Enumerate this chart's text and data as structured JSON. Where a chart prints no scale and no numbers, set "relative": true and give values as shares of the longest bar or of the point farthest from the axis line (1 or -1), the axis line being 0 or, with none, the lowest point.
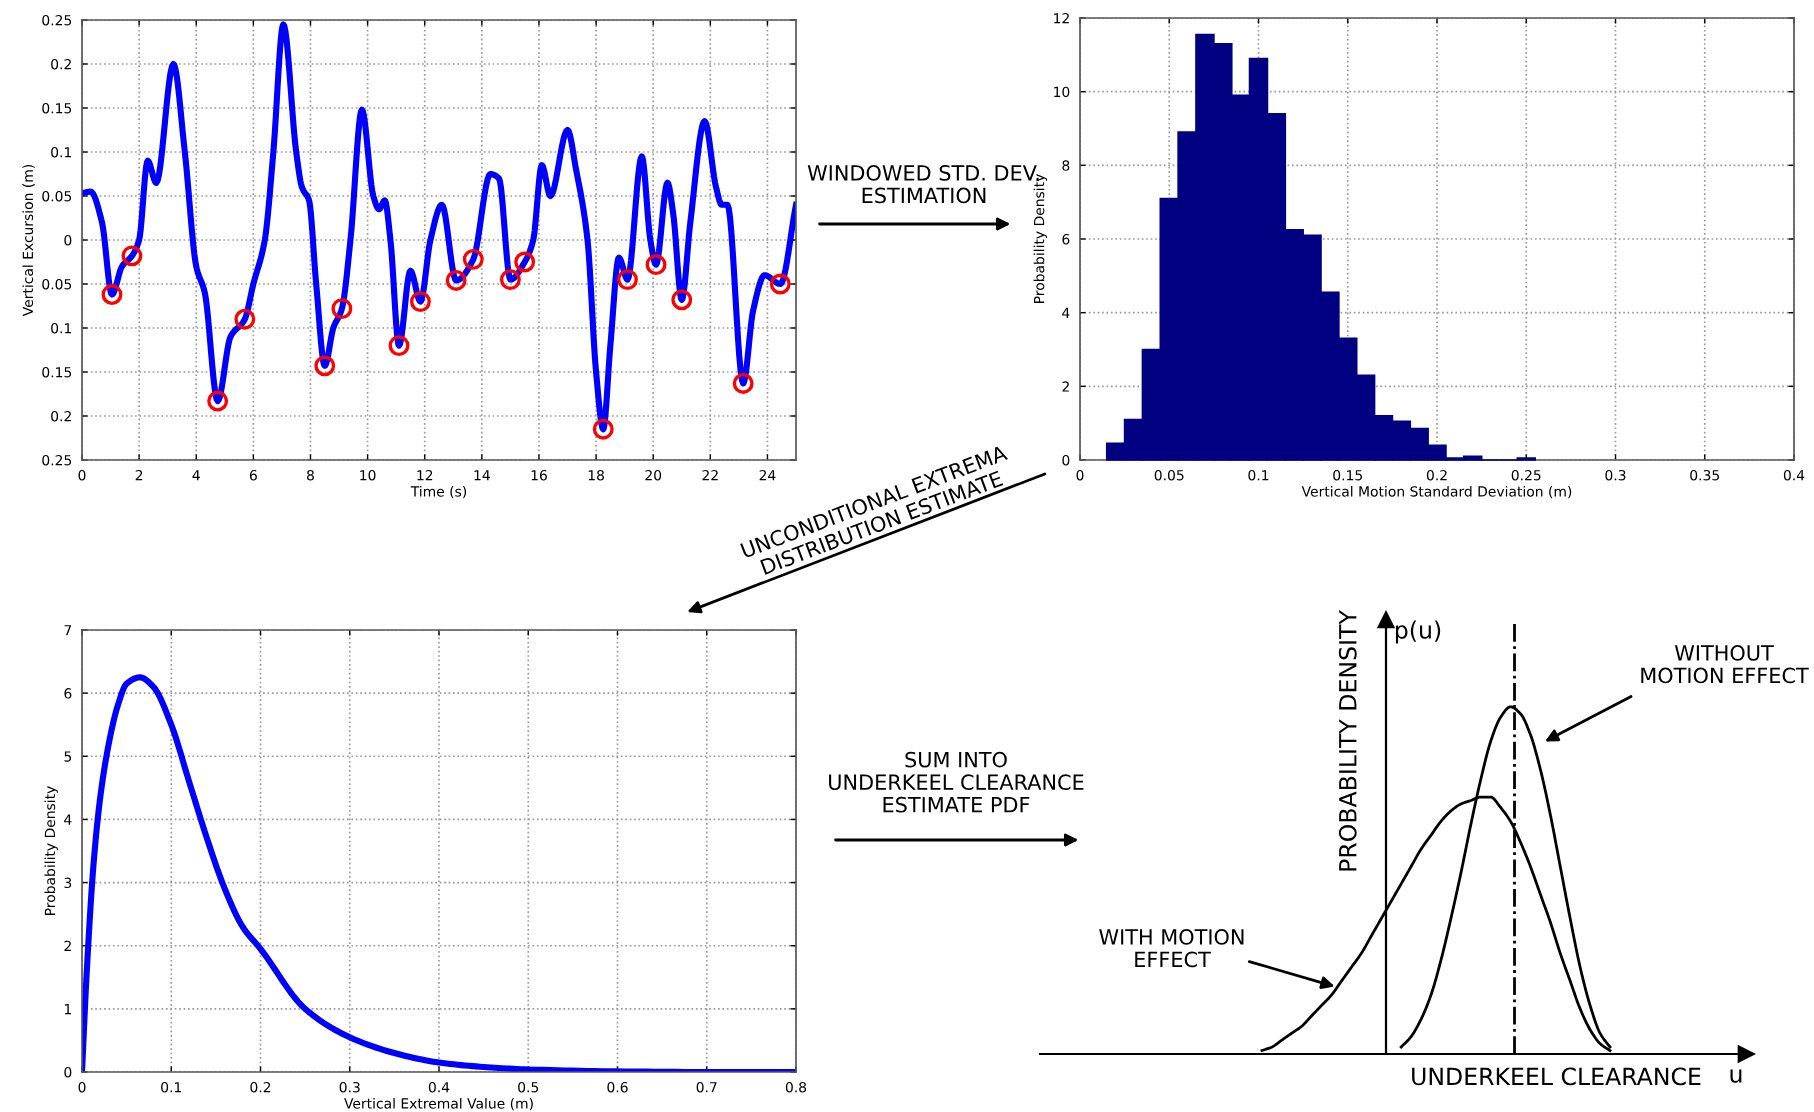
{
  "chart_data": [
    {
      "type": "line",
      "xlabel": "Time (s)",
      "ylabel": "Vertical Excursion (m)",
      "xlim": [
        0,
        25
      ],
      "xticks": [
        0,
        2,
        4,
        6,
        8,
        10,
        12,
        14,
        16,
        18,
        20,
        22,
        24
      ],
      "ylim": [
        -0.25,
        0.25
      ],
      "yticks": [
        {
          "value": -0.25,
          "label": "0.25"
        },
        {
          "value": -0.2,
          "label": "0.2"
        },
        {
          "value": -0.15,
          "label": "0.15"
        },
        {
          "value": -0.1,
          "label": "0.1"
        },
        {
          "value": -0.05,
          "label": "0.05"
        },
        0,
        0.05,
        0.1,
        0.15,
        0.2,
        0.25
      ],
      "grid": true,
      "annotations": [
        "WINDOWED STD. DEV.\nESTIMATION"
      ],
      "series": [
        {
          "type": "line",
          "color": "#0000ff",
          "x": [
            0,
            0.3,
            0.7,
            1.05,
            1.4,
            1.75,
            2.0,
            2.3,
            2.6,
            3.2,
            3.6,
            4.0,
            4.3,
            4.75,
            5.2,
            5.7,
            6.0,
            6.4,
            6.7,
            7.05,
            7.5,
            7.7,
            7.95,
            8.2,
            8.5,
            8.8,
            9.1,
            9.4,
            9.8,
            10.2,
            10.4,
            10.6,
            10.8,
            11.1,
            11.5,
            11.85,
            12.2,
            12.6,
            13.1,
            13.7,
            14.3,
            14.6,
            15.0,
            15.5,
            15.8,
            16.1,
            16.4,
            17.0,
            17.3,
            17.7,
            18.0,
            18.25,
            18.5,
            18.8,
            19.1,
            19.6,
            19.9,
            20.1,
            20.5,
            20.7,
            21.0,
            21.3,
            21.8,
            22.2,
            22.4,
            22.6,
            23.15,
            23.5,
            23.9,
            24.45,
            25
          ],
          "values": [
            0.053,
            0.055,
            0.02,
            -0.062,
            -0.03,
            -0.018,
            0.0,
            0.09,
            0.065,
            0.2,
            0.1,
            -0.03,
            -0.06,
            -0.183,
            -0.11,
            -0.09,
            -0.05,
            0.0,
            0.1,
            0.245,
            0.1,
            0.06,
            0.045,
            -0.05,
            -0.143,
            -0.1,
            -0.078,
            0.0,
            0.148,
            0.05,
            0.035,
            0.045,
            0.0,
            -0.12,
            -0.035,
            -0.07,
            0.0,
            0.04,
            -0.046,
            -0.022,
            0.075,
            0.07,
            -0.045,
            -0.025,
            0.0,
            0.085,
            0.05,
            0.125,
            0.08,
            0.0,
            -0.15,
            -0.215,
            -0.12,
            -0.02,
            -0.045,
            0.095,
            0.0,
            -0.028,
            0.065,
            0.03,
            -0.068,
            0.02,
            0.135,
            0.06,
            0.04,
            0.04,
            -0.163,
            -0.08,
            -0.04,
            -0.05,
            0.04
          ]
        },
        {
          "type": "scatter",
          "color": "#ff0000",
          "marker": "circle",
          "x": [
            1.05,
            1.75,
            4.75,
            5.7,
            8.5,
            9.1,
            11.1,
            11.85,
            13.1,
            13.7,
            15.0,
            15.5,
            18.25,
            19.1,
            20.1,
            21.0,
            23.15,
            24.45
          ],
          "values": [
            -0.062,
            -0.018,
            -0.183,
            -0.09,
            -0.143,
            -0.078,
            -0.12,
            -0.07,
            -0.046,
            -0.022,
            -0.045,
            -0.025,
            -0.215,
            -0.045,
            -0.028,
            -0.068,
            -0.163,
            -0.05
          ]
        }
      ]
    },
    {
      "type": "histogram",
      "xlabel": "Vertical Motion Standard Deviation (m)",
      "ylabel": "Probability Density",
      "color": "#000080",
      "xlim": [
        0,
        0.4
      ],
      "xticks": [
        0,
        0.05,
        0.1,
        0.15,
        0.2,
        0.25,
        0.3,
        0.35,
        0.4
      ],
      "ylim": [
        0,
        12
      ],
      "yticks": [
        0,
        2,
        4,
        6,
        8,
        10,
        12
      ],
      "grid": true,
      "annotations": [
        "UNCONDITIONAL EXTREMA\nDISTRIBUTION ESTIMATE"
      ],
      "bins": [
        0.015,
        0.025,
        0.035,
        0.045,
        0.055,
        0.065,
        0.075,
        0.085,
        0.095,
        0.105,
        0.115,
        0.125,
        0.135,
        0.145,
        0.155,
        0.165,
        0.175,
        0.185,
        0.195,
        0.205,
        0.215,
        0.225,
        0.235,
        0.245,
        0.255
      ],
      "values": [
        0.45,
        1.1,
        3.0,
        7.1,
        8.9,
        11.55,
        11.3,
        9.9,
        10.9,
        9.4,
        6.25,
        6.1,
        4.55,
        3.3,
        2.3,
        1.2,
        1.05,
        0.85,
        0.4,
        0.05,
        0.1,
        0,
        0,
        0.05
      ]
    },
    {
      "type": "line",
      "xlabel": "Vertical Extremal Value (m)",
      "ylabel": "Probability Density",
      "xlim": [
        0,
        0.8
      ],
      "xticks": [
        0,
        0.1,
        0.2,
        0.3,
        0.4,
        0.5,
        0.6,
        0.7,
        0.8
      ],
      "ylim": [
        0,
        7
      ],
      "yticks": [
        0,
        1,
        2,
        3,
        4,
        5,
        6,
        7
      ],
      "grid": true,
      "annotations": [
        "SUM INTO\nUNDERKEEL CLEARANCE\nESTIMATE PDF"
      ],
      "series": [
        {
          "color": "#0000ff",
          "x": [
            0,
            0.005,
            0.0127,
            0.02,
            0.03,
            0.04,
            0.05,
            0.065,
            0.08,
            0.1,
            0.12,
            0.14,
            0.16,
            0.18,
            0.2,
            0.25,
            0.3,
            0.35,
            0.4,
            0.45,
            0.5,
            0.6,
            0.7,
            0.8
          ],
          "values": [
            0,
            1.5,
            3.25,
            4.3,
            5.2,
            5.8,
            6.15,
            6.25,
            6.1,
            5.5,
            4.6,
            3.7,
            2.9,
            2.3,
            1.95,
            1.0,
            0.55,
            0.3,
            0.15,
            0.08,
            0.04,
            0.01,
            0,
            0
          ]
        }
      ]
    },
    {
      "type": "line",
      "relative": true,
      "xlabel": "UNDERKEEL CLEARANCE",
      "ylabel": "PROBABILITY DENSITY",
      "annotations": [
        "p(u)",
        "u",
        "WITH MOTION\nEFFECT",
        "WITHOUT\nMOTION EFFECT"
      ],
      "categories": [
        null,
        null,
        null,
        null,
        null,
        null,
        null,
        null,
        null,
        null,
        null,
        null,
        null,
        null,
        null,
        null,
        null,
        null,
        null,
        null,
        null,
        null,
        null,
        null,
        null,
        null,
        null,
        null,
        null,
        null,
        null,
        null,
        null,
        null,
        null,
        null
      ],
      "series": [
        {
          "color": "#000000",
          "values": [
            0.01,
            0.02,
            0.04,
            0.06,
            0.08,
            0.11,
            0.14,
            0.17,
            0.21,
            0.25,
            0.29,
            0.34,
            0.39,
            0.44,
            0.49,
            0.54,
            0.59,
            0.63,
            0.67,
            0.7,
            0.72,
            0.73,
            0.74,
            0.74,
            0.71,
            0.67,
            0.61,
            0.54,
            0.46,
            0.38,
            0.29,
            0.21,
            0.13,
            0.07,
            0.03,
            0.01
          ]
        },
        {
          "color": "#000000",
          "values": [
            null,
            null,
            null,
            null,
            null,
            null,
            null,
            null,
            null,
            null,
            null,
            null,
            null,
            null,
            0.02,
            0.05,
            0.1,
            0.17,
            0.27,
            0.39,
            0.52,
            0.66,
            0.79,
            0.9,
            0.97,
            1.0,
            0.98,
            0.92,
            0.82,
            0.69,
            0.54,
            0.39,
            0.25,
            0.14,
            0.06,
            0.02
          ]
        }
      ]
    }
  ]
}
